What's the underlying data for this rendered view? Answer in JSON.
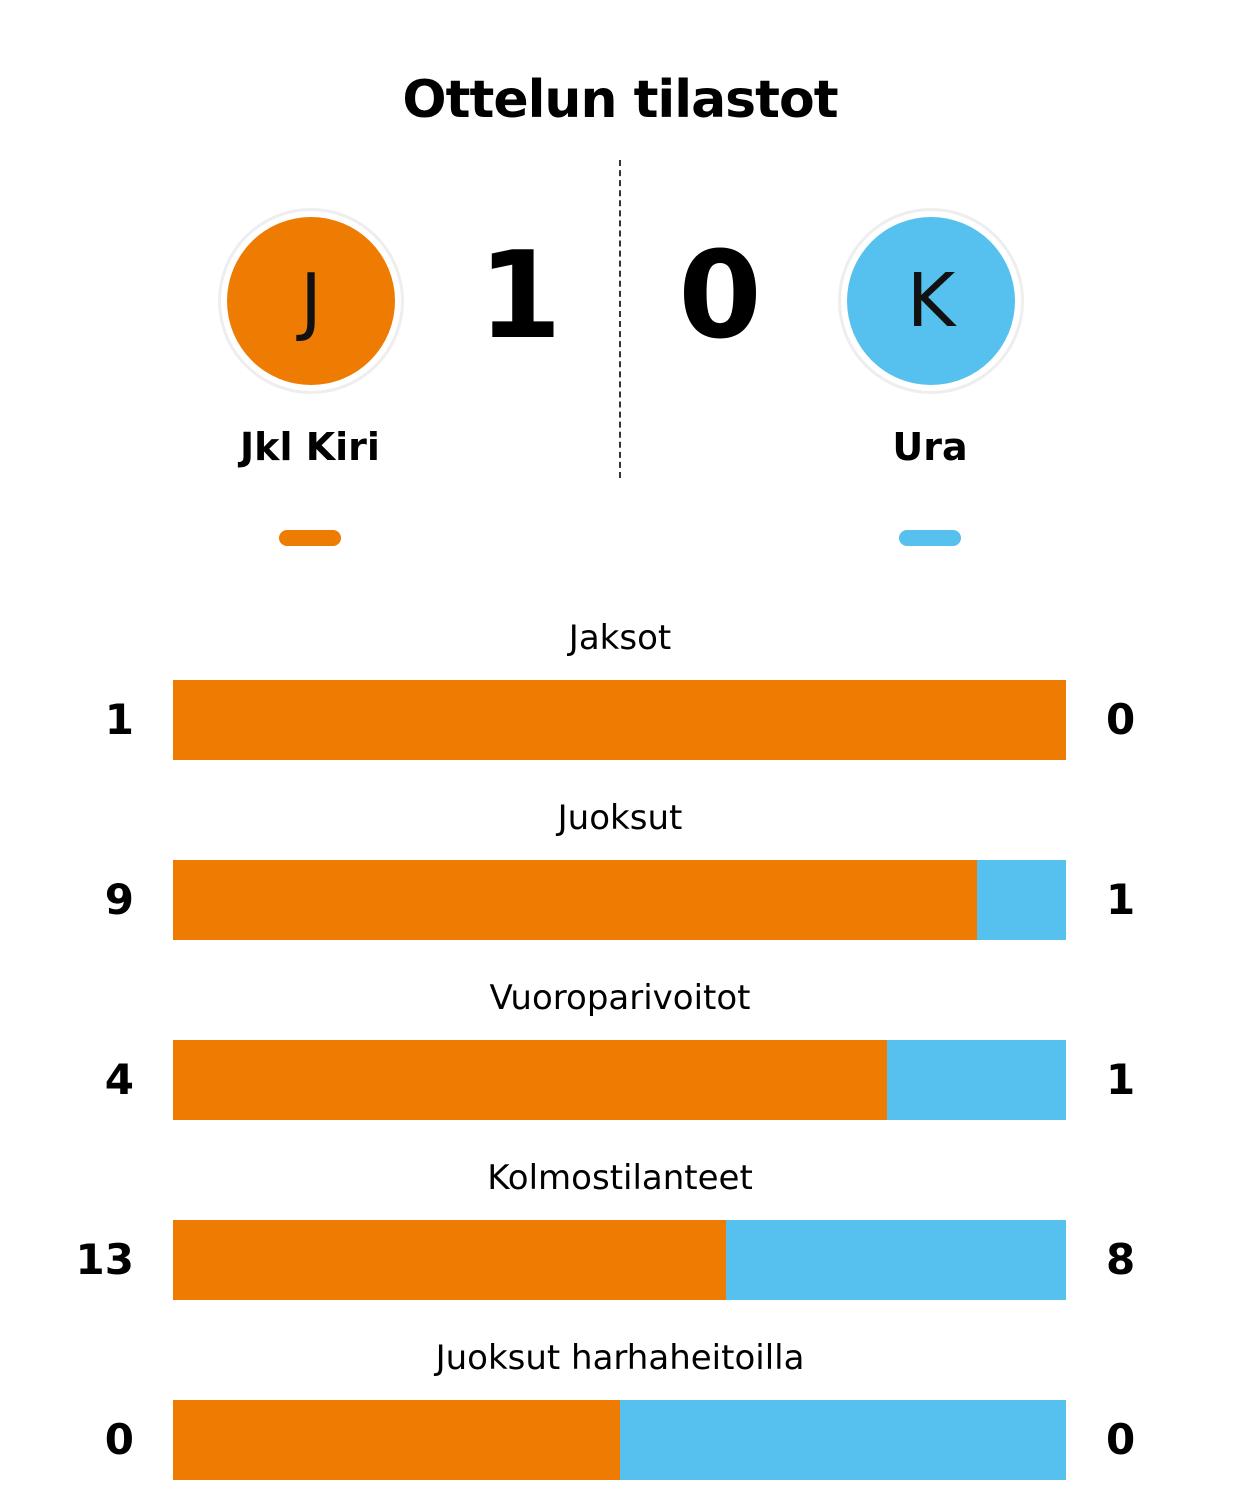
{
  "title": "Ottelun tilastot",
  "colors": {
    "home": "#EE7B02",
    "away": "#56C0EF"
  },
  "home": {
    "logo_letter": "J",
    "name": "Jkl Kiri",
    "score": "1"
  },
  "away": {
    "logo_letter": "K",
    "name": "Ura",
    "score": "0"
  },
  "stats": [
    {
      "label": "Jaksot",
      "home": "1",
      "away": "0",
      "home_share": 1.0
    },
    {
      "label": "Juoksut",
      "home": "9",
      "away": "1",
      "home_share": 0.9
    },
    {
      "label": "Vuoroparivoitot",
      "home": "4",
      "away": "1",
      "home_share": 0.8
    },
    {
      "label": "Kolmostilanteet",
      "home": "13",
      "away": "8",
      "home_share": 0.619
    },
    {
      "label": "Juoksut harhaheitoilla",
      "home": "0",
      "away": "0",
      "home_share": 0.5
    }
  ]
}
